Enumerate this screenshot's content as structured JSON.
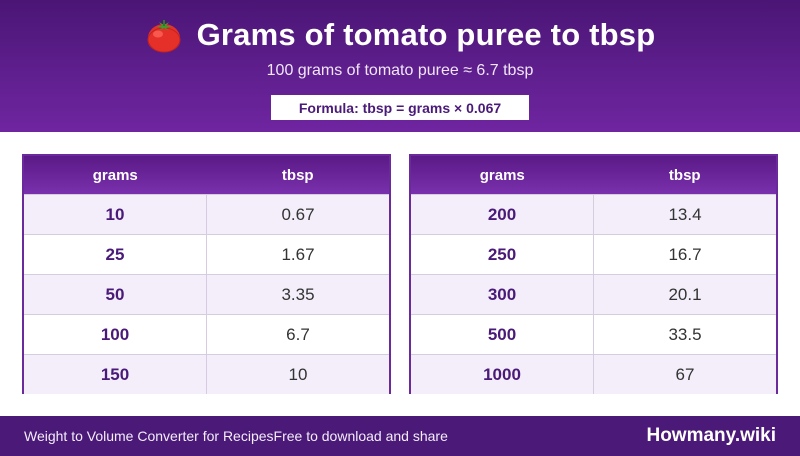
{
  "header": {
    "title": "Grams of tomato puree to tbsp",
    "icon": "tomato-icon",
    "subtitle": "100 grams of tomato puree ≈ 6.7 tbsp",
    "formula": "Formula: tbsp = grams × 0.067"
  },
  "tables": [
    {
      "headers": [
        "grams",
        "tbsp"
      ],
      "rows": [
        [
          "10",
          "0.67"
        ],
        [
          "25",
          "1.67"
        ],
        [
          "50",
          "3.35"
        ],
        [
          "100",
          "6.7"
        ],
        [
          "150",
          "10"
        ]
      ]
    },
    {
      "headers": [
        "grams",
        "tbsp"
      ],
      "rows": [
        [
          "200",
          "13.4"
        ],
        [
          "250",
          "16.7"
        ],
        [
          "300",
          "20.1"
        ],
        [
          "500",
          "33.5"
        ],
        [
          "1000",
          "67"
        ]
      ]
    }
  ],
  "footer": {
    "app_name": "Weight to Volume Converter for Recipes",
    "free_text": "Free to download and share",
    "brand": "Howmany.wiki"
  },
  "colors": {
    "header_purple": "#5f1f8e",
    "footer_purple": "#4b1a78",
    "accent_text": "#4a1a78",
    "tomato_red": "#e5302a"
  }
}
